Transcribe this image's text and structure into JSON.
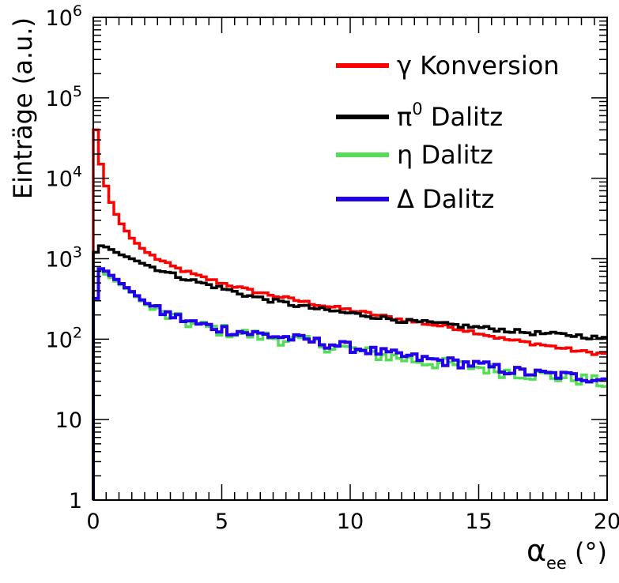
{
  "chart_data": {
    "type": "line",
    "title": "",
    "xlabel": "αee (°)",
    "xlabel_main": "α",
    "xlabel_sub": "ee",
    "xlabel_unit": "(°)",
    "ylabel": "Einträge (a.u.)",
    "xlim": [
      0,
      20
    ],
    "ylim": [
      1,
      1000000
    ],
    "y_scale": "log",
    "grid": false,
    "legend_position": "top-right",
    "x_ticks": [
      0,
      5,
      10,
      15,
      20
    ],
    "x_tick_labels": [
      "0",
      "5",
      "10",
      "15",
      "20"
    ],
    "y_ticks": [
      {
        "value": 1,
        "label": "1",
        "sup": ""
      },
      {
        "value": 10,
        "label": "10",
        "sup": ""
      },
      {
        "value": 100,
        "label": "10",
        "sup": "2"
      },
      {
        "value": 1000,
        "label": "10",
        "sup": "3"
      },
      {
        "value": 10000,
        "label": "10",
        "sup": "4"
      },
      {
        "value": 100000,
        "label": "10",
        "sup": "5"
      },
      {
        "value": 1000000,
        "label": "10",
        "sup": "6"
      }
    ],
    "x": [
      0.1,
      0.3,
      0.5,
      0.7,
      1,
      1.5,
      2,
      2.5,
      3,
      4,
      5,
      6,
      7,
      8,
      9,
      10,
      11,
      12,
      13,
      14,
      15,
      16,
      17,
      18,
      19,
      20
    ],
    "series": [
      {
        "name": "γ Konversion",
        "color": "#ff0000",
        "values": [
          40000,
          15000,
          8000,
          5000,
          3000,
          1800,
          1250,
          1000,
          820,
          620,
          500,
          410,
          350,
          300,
          260,
          230,
          200,
          175,
          155,
          140,
          120,
          100,
          90,
          80,
          70,
          65
        ]
      },
      {
        "name": "π0 Dalitz",
        "name_main": "π",
        "name_sup": "0",
        "name_rest": " Dalitz",
        "color": "#000000",
        "values": [
          1200,
          1450,
          1400,
          1300,
          1150,
          1000,
          850,
          750,
          650,
          520,
          430,
          350,
          300,
          260,
          230,
          210,
          190,
          170,
          160,
          150,
          140,
          130,
          120,
          115,
          110,
          100
        ]
      },
      {
        "name": "η Dalitz",
        "color": "#55dd55",
        "values": [
          320,
          700,
          640,
          580,
          500,
          380,
          280,
          220,
          190,
          150,
          130,
          115,
          105,
          95,
          85,
          75,
          65,
          58,
          52,
          48,
          45,
          40,
          37,
          34,
          32,
          28
        ]
      },
      {
        "name": "Δ Dalitz",
        "color": "#2200ee",
        "values": [
          320,
          750,
          700,
          620,
          520,
          390,
          290,
          230,
          200,
          155,
          135,
          120,
          110,
          100,
          90,
          80,
          70,
          62,
          56,
          52,
          48,
          42,
          38,
          36,
          34,
          32
        ]
      }
    ]
  }
}
